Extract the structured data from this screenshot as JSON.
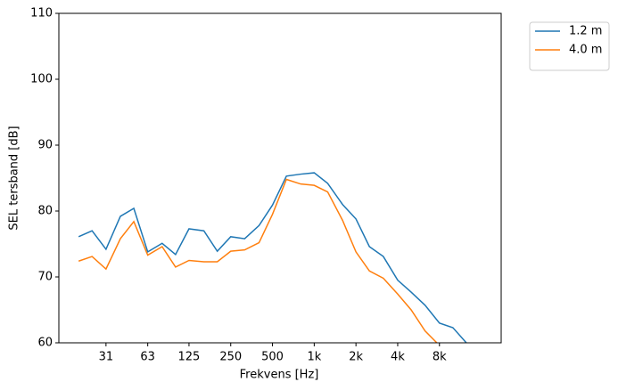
{
  "chart_data": {
    "type": "line",
    "xlabel": "Frekvens [Hz]",
    "ylabel": "SEL tersband [dB]",
    "xscale": "log",
    "x": [
      20,
      25,
      31.5,
      40,
      50,
      63,
      80,
      100,
      125,
      160,
      200,
      250,
      315,
      400,
      500,
      630,
      800,
      1000,
      1250,
      1600,
      2000,
      2500,
      3150,
      4000,
      5000,
      6300,
      8000,
      10000,
      12500
    ],
    "series": [
      {
        "name": "1.2 m",
        "color": "#1f77b4",
        "values": [
          76.1,
          77.0,
          74.2,
          79.2,
          80.4,
          73.8,
          75.1,
          73.4,
          77.3,
          77.0,
          73.9,
          76.1,
          75.8,
          77.8,
          80.9,
          85.3,
          85.6,
          85.8,
          84.2,
          81.0,
          78.8,
          74.6,
          73.1,
          69.5,
          67.7,
          65.7,
          63.0,
          62.3,
          60.0
        ]
      },
      {
        "name": "4.0 m",
        "color": "#ff7f0e",
        "values": [
          72.4,
          73.1,
          71.2,
          75.8,
          78.4,
          73.3,
          74.6,
          71.5,
          72.5,
          72.3,
          72.3,
          73.9,
          74.1,
          75.2,
          79.5,
          84.8,
          84.1,
          83.9,
          82.9,
          78.6,
          73.8,
          70.9,
          69.8,
          67.4,
          65.0,
          61.8,
          59.6,
          null,
          null
        ]
      }
    ],
    "xlim": [
      14.4,
      22300
    ],
    "xticks": [
      {
        "value": 31.5,
        "label": "31"
      },
      63,
      125,
      250,
      500,
      {
        "value": 1000,
        "label": "1k"
      },
      {
        "value": 2000,
        "label": "2k"
      },
      {
        "value": 4000,
        "label": "4k"
      },
      {
        "value": 8000,
        "label": "8k"
      }
    ],
    "ylim": [
      60,
      110
    ],
    "yticks": [
      60,
      70,
      80,
      90,
      100,
      110
    ],
    "grid": false,
    "legend": "outside upper right"
  }
}
